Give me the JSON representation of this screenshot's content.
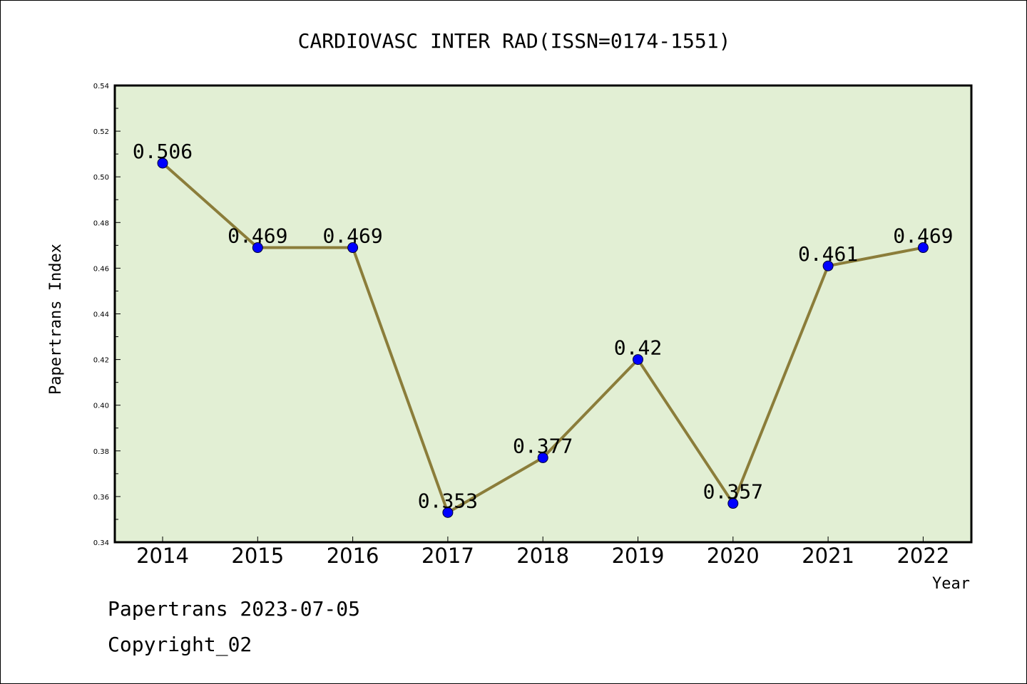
{
  "chart_data": {
    "type": "line",
    "title": "CARDIOVASC INTER RAD(ISSN=0174-1551)",
    "xlabel": "Year",
    "ylabel": "Papertrans Index",
    "categories": [
      "2014",
      "2015",
      "2016",
      "2017",
      "2018",
      "2019",
      "2020",
      "2021",
      "2022"
    ],
    "series": [
      {
        "values": [
          0.506,
          0.469,
          0.469,
          0.353,
          0.377,
          0.42,
          0.357,
          0.461,
          0.469
        ],
        "data_labels": [
          "0.506",
          "0.469",
          "0.469",
          "0.353",
          "0.377",
          "0.42",
          "0.357",
          "0.461",
          "0.469"
        ]
      }
    ],
    "ylim": [
      0.34,
      0.54
    ],
    "yticks": [
      "0.34",
      "0.36",
      "0.38",
      "0.40",
      "0.42",
      "0.44",
      "0.46",
      "0.48",
      "0.50",
      "0.52",
      "0.54"
    ],
    "grid": false,
    "line_color": "#8b7d3a",
    "marker_color": "#0000ff",
    "plot_background": "#e2efd4"
  },
  "footer": {
    "line1": "Papertrans 2023-07-05",
    "line2": "Copyright_02"
  }
}
